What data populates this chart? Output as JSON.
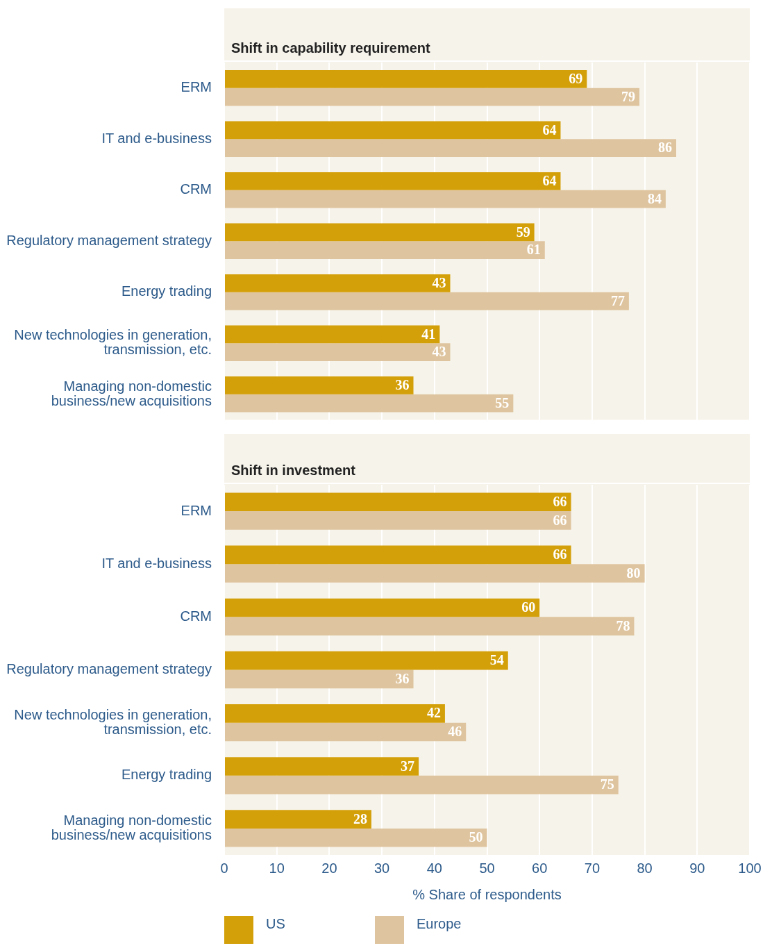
{
  "chart_data": [
    {
      "type": "bar",
      "orientation": "horizontal",
      "title": "Shift in capability requirement",
      "categories": [
        "ERM",
        "IT and e-business",
        "CRM",
        "Regulatory management strategy",
        "Energy trading",
        "New technologies in generation, transmission, etc.",
        "Managing non-domestic business/new acquisitions"
      ],
      "series": [
        {
          "color": "#d4a00a",
          "values": [
            69,
            64,
            64,
            59,
            43,
            41,
            36
          ]
        },
        {
          "color": "#dfc59f",
          "values": [
            79,
            86,
            84,
            61,
            77,
            43,
            55
          ]
        }
      ],
      "xlim": [
        0,
        100
      ],
      "xticks": [
        0,
        10,
        20,
        30,
        40,
        50,
        60,
        70,
        80,
        90,
        100
      ],
      "grid": "x",
      "data_labels": true,
      "tick_labels": "y"
    },
    {
      "type": "bar",
      "orientation": "horizontal",
      "title": "Shift in investment",
      "xlabel": "% Share of respondents",
      "categories": [
        "ERM",
        "IT and e-business",
        "CRM",
        "Regulatory management strategy",
        "New technologies in generation, transmission, etc.",
        "Energy trading",
        "Managing non-domestic business/new acquisitions"
      ],
      "series": [
        {
          "name": "US",
          "color": "#d4a00a",
          "values": [
            66,
            66,
            60,
            54,
            42,
            37,
            28
          ]
        },
        {
          "name": "Europe",
          "color": "#dfc59f",
          "values": [
            66,
            80,
            78,
            36,
            46,
            75,
            50
          ]
        }
      ],
      "xlim": [
        0,
        100
      ],
      "xticks": [
        0,
        10,
        20,
        30,
        40,
        50,
        60,
        70,
        80,
        90,
        100
      ],
      "grid": "x",
      "data_labels": true,
      "legend": "bottom"
    }
  ]
}
